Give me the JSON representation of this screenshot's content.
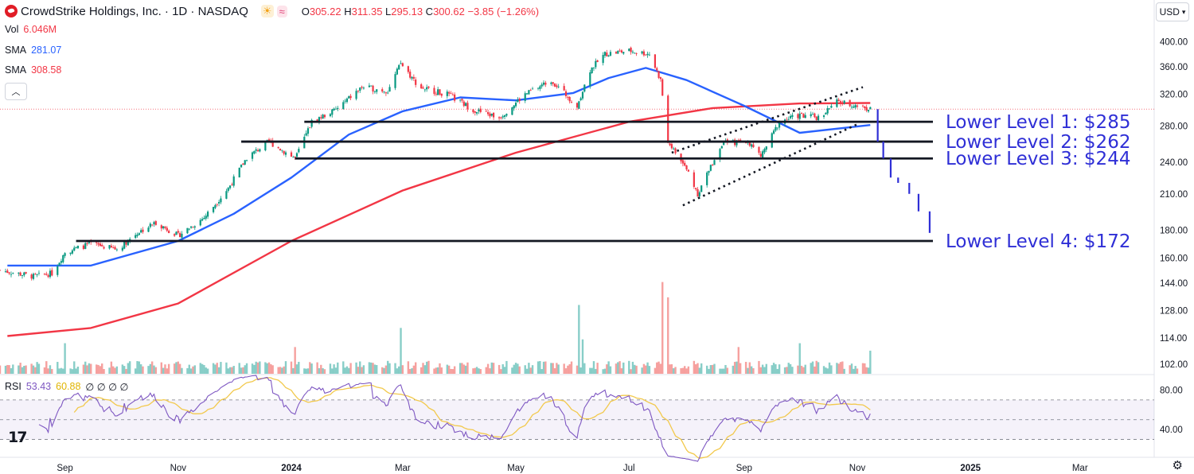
{
  "header": {
    "title": "CrowdStrike Holdings, Inc. · 1D · NASDAQ",
    "o_label": "O",
    "o_value": "305.22",
    "h_label": "H",
    "h_value": "311.35",
    "l_label": "L",
    "l_value": "295.13",
    "c_label": "C",
    "c_value": "300.62",
    "change": "−3.85 (−1.26%)"
  },
  "indicators": {
    "vol_label": "Vol",
    "vol_value": "6.046M",
    "sma1_label": "SMA",
    "sma1_value": "281.07",
    "sma2_label": "SMA",
    "sma2_value": "308.58",
    "rsi_label": "RSI",
    "rsi_value": "53.43",
    "rsi_ma_value": "60.88",
    "rsi_extra": "∅ ∅ ∅ ∅"
  },
  "currency": "USD",
  "colors": {
    "up": "#089981",
    "down": "#f23645",
    "sma_fast": "#2962ff",
    "sma_slow": "#f23645",
    "levels_text": "#2f2fd6",
    "projection": "#2f2fd6",
    "rsi_line": "#7e57c2",
    "rsi_ma": "#f2c94c"
  },
  "icons": [
    "logo-icon",
    "sun-icon",
    "wave-icon",
    "chevron-up-icon",
    "chevron-down-icon",
    "tradingview-logo-icon",
    "gear-icon"
  ],
  "chart_data": {
    "type": "candlestick",
    "price_ticks": [
      "400.00",
      "360.00",
      "320.00",
      "280.00",
      "240.00",
      "210.00",
      "180.00",
      "160.00",
      "144.00",
      "128.00",
      "114.00",
      "102.00"
    ],
    "price_scale": "log",
    "price_range": [
      98,
      420
    ],
    "time_ticks": [
      {
        "label": "Sep",
        "date": "2023-09-01"
      },
      {
        "label": "Nov",
        "date": "2023-11-01"
      },
      {
        "label": "2024",
        "date": "2024-01-01",
        "bold": true
      },
      {
        "label": "Mar",
        "date": "2024-03-01"
      },
      {
        "label": "May",
        "date": "2024-05-01"
      },
      {
        "label": "Jul",
        "date": "2024-07-01"
      },
      {
        "label": "Sep",
        "date": "2024-09-01"
      },
      {
        "label": "Nov",
        "date": "2024-11-01"
      },
      {
        "label": "2025",
        "date": "2025-01-01",
        "bold": true
      },
      {
        "label": "Mar",
        "date": "2025-03-01"
      }
    ],
    "last_price": 300.62,
    "price_path": [
      {
        "date": "2023-07-28",
        "close": 152
      },
      {
        "date": "2023-08-15",
        "close": 148
      },
      {
        "date": "2023-08-25",
        "close": 150
      },
      {
        "date": "2023-09-01",
        "close": 164
      },
      {
        "date": "2023-09-15",
        "close": 170
      },
      {
        "date": "2023-09-29",
        "close": 166
      },
      {
        "date": "2023-10-10",
        "close": 178
      },
      {
        "date": "2023-10-20",
        "close": 186
      },
      {
        "date": "2023-11-01",
        "close": 176
      },
      {
        "date": "2023-11-15",
        "close": 190
      },
      {
        "date": "2023-11-28",
        "close": 215
      },
      {
        "date": "2023-12-08",
        "close": 245
      },
      {
        "date": "2023-12-20",
        "close": 262
      },
      {
        "date": "2024-01-03",
        "close": 244
      },
      {
        "date": "2024-01-12",
        "close": 285
      },
      {
        "date": "2024-01-25",
        "close": 300
      },
      {
        "date": "2024-02-08",
        "close": 330
      },
      {
        "date": "2024-02-22",
        "close": 325
      },
      {
        "date": "2024-02-29",
        "close": 365
      },
      {
        "date": "2024-03-10",
        "close": 330
      },
      {
        "date": "2024-03-25",
        "close": 320
      },
      {
        "date": "2024-04-08",
        "close": 300
      },
      {
        "date": "2024-04-22",
        "close": 290
      },
      {
        "date": "2024-05-06",
        "close": 320
      },
      {
        "date": "2024-05-20",
        "close": 340
      },
      {
        "date": "2024-06-03",
        "close": 305
      },
      {
        "date": "2024-06-10",
        "close": 355
      },
      {
        "date": "2024-06-18",
        "close": 380
      },
      {
        "date": "2024-07-01",
        "close": 385
      },
      {
        "date": "2024-07-12",
        "close": 380
      },
      {
        "date": "2024-07-18",
        "close": 340
      },
      {
        "date": "2024-07-22",
        "close": 262
      },
      {
        "date": "2024-08-02",
        "close": 230
      },
      {
        "date": "2024-08-07",
        "close": 210
      },
      {
        "date": "2024-08-20",
        "close": 260
      },
      {
        "date": "2024-09-03",
        "close": 262
      },
      {
        "date": "2024-09-10",
        "close": 246
      },
      {
        "date": "2024-09-20",
        "close": 285
      },
      {
        "date": "2024-10-01",
        "close": 293
      },
      {
        "date": "2024-10-11",
        "close": 290
      },
      {
        "date": "2024-10-21",
        "close": 310
      },
      {
        "date": "2024-11-01",
        "close": 305
      },
      {
        "date": "2024-11-08",
        "close": 300.62
      }
    ],
    "sma_fast": [
      {
        "date": "2023-08-01",
        "value": 155
      },
      {
        "date": "2023-09-15",
        "value": 155
      },
      {
        "date": "2023-11-01",
        "value": 172
      },
      {
        "date": "2023-12-01",
        "value": 193
      },
      {
        "date": "2024-01-01",
        "value": 225
      },
      {
        "date": "2024-02-01",
        "value": 270
      },
      {
        "date": "2024-03-01",
        "value": 298
      },
      {
        "date": "2024-04-01",
        "value": 316
      },
      {
        "date": "2024-05-01",
        "value": 312
      },
      {
        "date": "2024-06-01",
        "value": 322
      },
      {
        "date": "2024-06-20",
        "value": 343
      },
      {
        "date": "2024-07-10",
        "value": 358
      },
      {
        "date": "2024-08-01",
        "value": 340
      },
      {
        "date": "2024-09-01",
        "value": 305
      },
      {
        "date": "2024-10-01",
        "value": 272
      },
      {
        "date": "2024-11-08",
        "value": 281.07
      }
    ],
    "sma_slow": [
      {
        "date": "2023-08-01",
        "value": 115
      },
      {
        "date": "2023-09-15",
        "value": 119
      },
      {
        "date": "2023-11-01",
        "value": 132
      },
      {
        "date": "2024-01-01",
        "value": 172
      },
      {
        "date": "2024-03-01",
        "value": 213
      },
      {
        "date": "2024-05-01",
        "value": 250
      },
      {
        "date": "2024-07-01",
        "value": 285
      },
      {
        "date": "2024-08-15",
        "value": 302
      },
      {
        "date": "2024-10-01",
        "value": 308
      },
      {
        "date": "2024-11-08",
        "value": 308.58
      }
    ],
    "volume_spikes_M": [
      {
        "date": "2023-09-01",
        "value": 8
      },
      {
        "date": "2024-01-03",
        "value": 7
      },
      {
        "date": "2024-02-29",
        "value": 12
      },
      {
        "date": "2024-06-04",
        "value": 18
      },
      {
        "date": "2024-06-06",
        "value": 9
      },
      {
        "date": "2024-07-19",
        "value": 24
      },
      {
        "date": "2024-07-22",
        "value": 20
      },
      {
        "date": "2024-08-29",
        "value": 7
      },
      {
        "date": "2024-10-01",
        "value": 8
      },
      {
        "date": "2024-11-08",
        "value": 6.046
      }
    ],
    "support_levels": [
      {
        "label": "Lower Level 1: $285",
        "price": 285,
        "from": "2024-01-08"
      },
      {
        "label": "Lower Level 2: $262",
        "price": 262,
        "from": "2023-12-05"
      },
      {
        "label": "Lower Level 3: $244",
        "price": 244,
        "from": "2024-01-03"
      },
      {
        "label": "Lower Level 4: $172",
        "price": 172,
        "from": "2023-09-07"
      }
    ],
    "trend_channel": {
      "upper": [
        {
          "date": "2024-07-24",
          "price": 250
        },
        {
          "date": "2024-11-04",
          "price": 330
        }
      ],
      "lower": [
        {
          "date": "2024-07-30",
          "price": 200
        },
        {
          "date": "2024-11-01",
          "price": 282
        }
      ]
    },
    "projection_bars": [
      {
        "date": "2024-11-12",
        "price": 262
      },
      {
        "date": "2024-11-15",
        "price": 244
      },
      {
        "date": "2024-11-19",
        "price": 225
      },
      {
        "date": "2024-11-23",
        "price": 220
      },
      {
        "date": "2024-11-29",
        "price": 210
      },
      {
        "date": "2024-12-04",
        "price": 195
      },
      {
        "date": "2024-12-10",
        "price": 178
      }
    ],
    "rsi": {
      "ticks": [
        "80.00",
        "40.00"
      ],
      "upper_band": 70,
      "lower_band": 30,
      "last": 53.43,
      "ma_last": 60.88
    }
  }
}
